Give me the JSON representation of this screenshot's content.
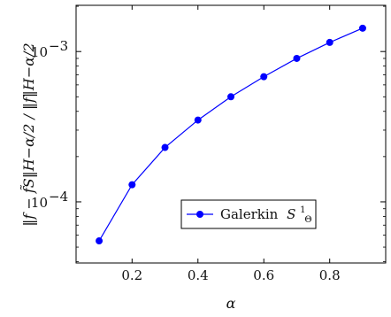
{
  "chart_data": {
    "type": "line",
    "title": "",
    "xlabel": "α",
    "ylabel": "‖f − f̃S‖H−α/2 / ‖f‖H−α/2",
    "xlim": [
      0.03,
      0.97
    ],
    "ylim": [
      3.92e-05,
      0.00203
    ],
    "yscale": "log",
    "x_ticks": [
      0.2,
      0.4,
      0.6,
      0.8
    ],
    "x_tick_labels": [
      "0.2",
      "0.4",
      "0.6",
      "0.8"
    ],
    "y_ticks": [
      0.0001,
      0.001
    ],
    "y_tick_base": "10",
    "y_tick_exponents": [
      "−4",
      "−3"
    ],
    "grid": false,
    "legend_position": "lower-right",
    "series": [
      {
        "name": "Galerkin S¹Θ",
        "name_text": "Galerkin",
        "name_math": "S",
        "name_sup": "1",
        "name_sub": "Θ",
        "color": "#0000ff",
        "marker": "circle",
        "x": [
          0.1,
          0.2,
          0.3,
          0.4,
          0.5,
          0.6,
          0.7,
          0.8,
          0.9
        ],
        "values": [
          5.5e-05,
          0.00013,
          0.00023,
          0.00035,
          0.0005,
          0.00068,
          0.0009,
          0.00115,
          0.00143
        ]
      }
    ]
  }
}
